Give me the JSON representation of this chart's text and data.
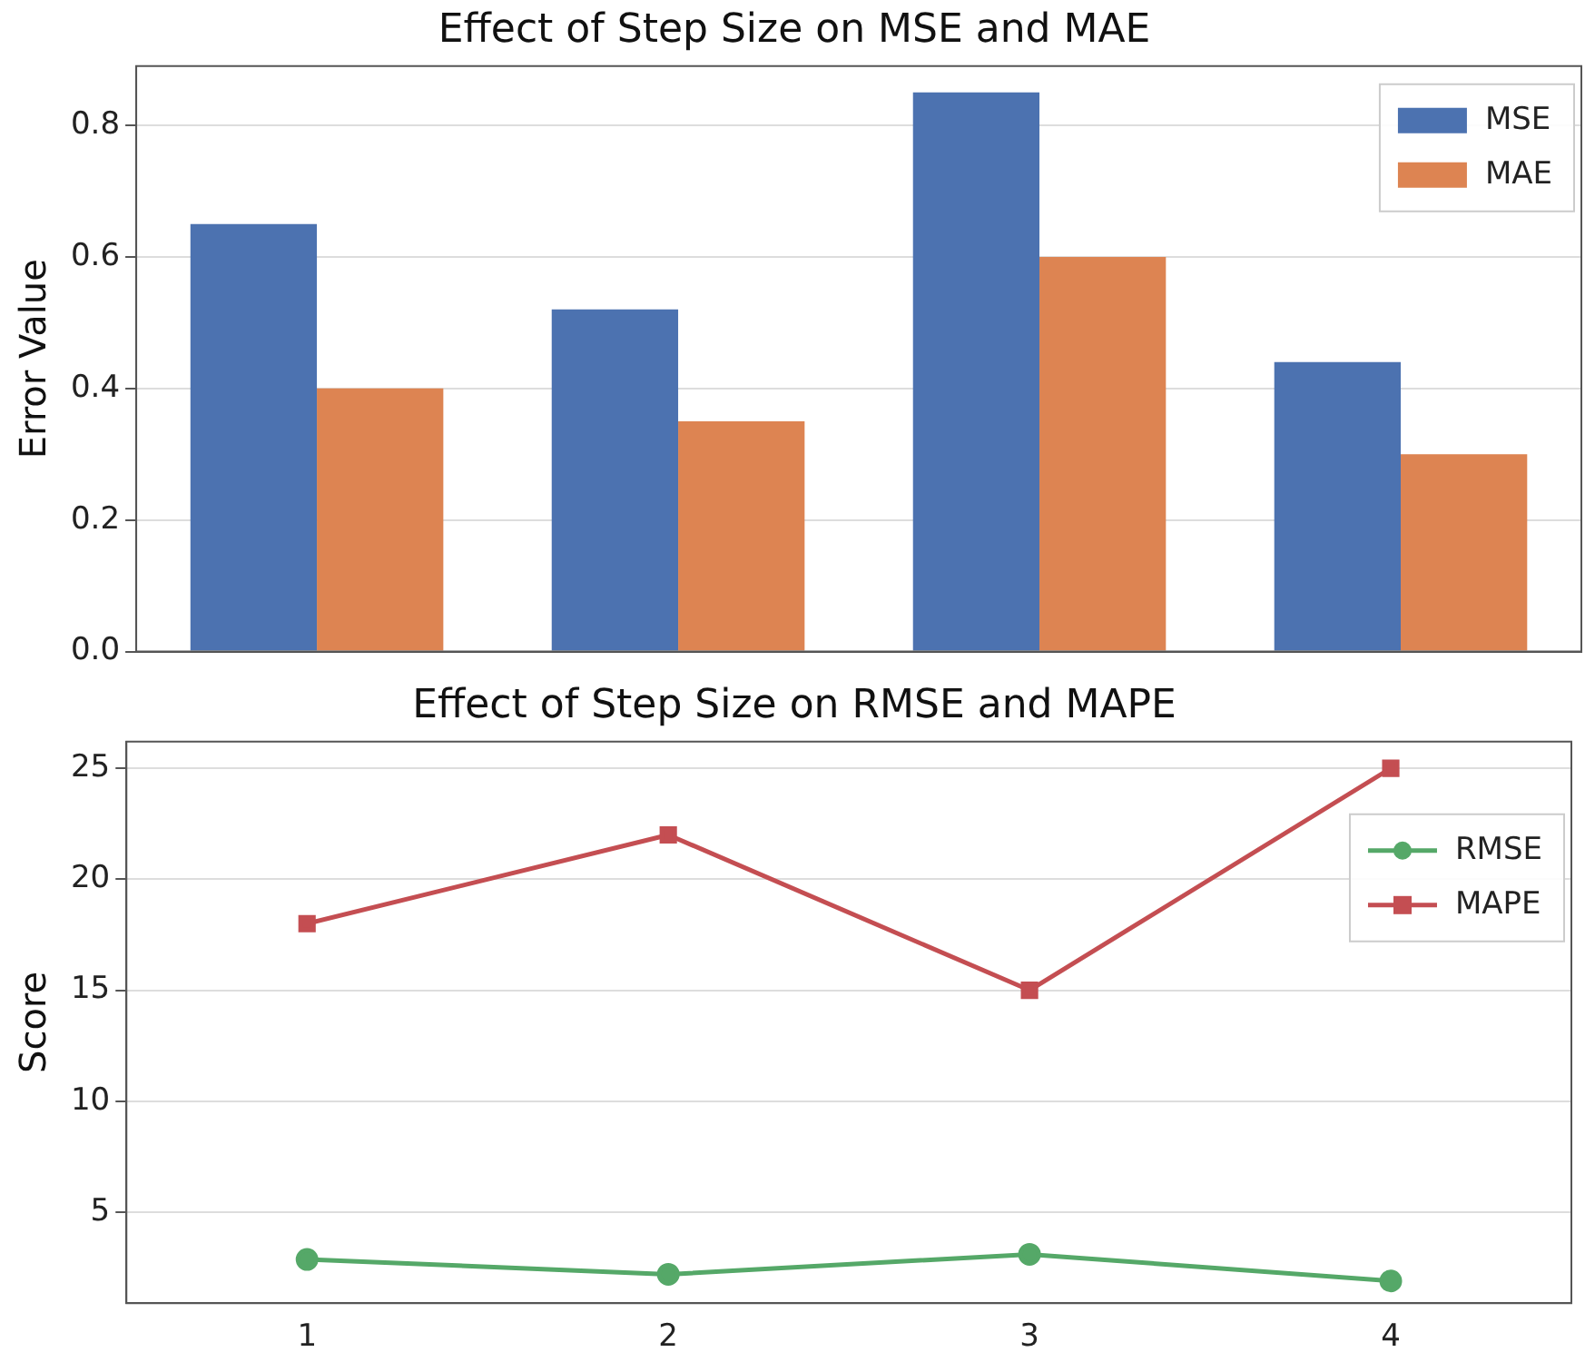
{
  "chart_data": [
    {
      "type": "bar",
      "title": "Effect of Step Size on MSE and MAE",
      "ylabel": "Error Value",
      "categories": [
        "1",
        "2",
        "3",
        "4"
      ],
      "series": [
        {
          "name": "MSE",
          "color": "#4c72b0",
          "values": [
            0.65,
            0.52,
            0.85,
            0.44
          ]
        },
        {
          "name": "MAE",
          "color": "#dd8452",
          "values": [
            0.4,
            0.35,
            0.6,
            0.3
          ]
        }
      ],
      "ylim": [
        0,
        0.89
      ],
      "yticks": [
        {
          "value": 0,
          "label": "0.0"
        },
        0.2,
        0.4,
        0.6,
        0.8
      ],
      "grid": "y",
      "legend": "top right",
      "tick_labels": "y"
    },
    {
      "type": "line",
      "title": "Effect of Step Size on RMSE and MAPE",
      "ylabel": "Score",
      "categories": [
        "1",
        "2",
        "3",
        "4"
      ],
      "series": [
        {
          "name": "RMSE",
          "color": "#55a868",
          "marker": "circle",
          "values": [
            2.87,
            2.2,
            3.1,
            1.9
          ]
        },
        {
          "name": "MAPE",
          "color": "#c44e52",
          "marker": "square",
          "values": [
            18,
            22,
            15,
            25
          ]
        }
      ],
      "ylim": [
        0.9,
        26.2
      ],
      "yticks": [
        5,
        10,
        15,
        20,
        25
      ],
      "grid": "y",
      "legend": "top right",
      "line_style": "solid"
    }
  ]
}
